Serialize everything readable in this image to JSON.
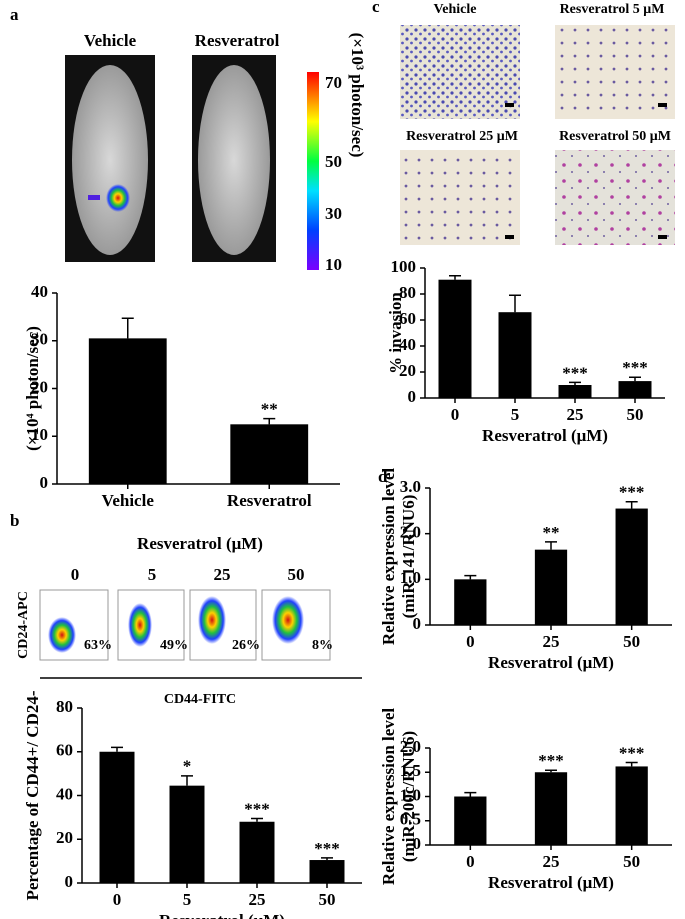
{
  "figure": {
    "panel_letters": [
      "a",
      "b",
      "c",
      "d"
    ],
    "a": {
      "image_labels": [
        "Vehicle",
        "Resveratrol"
      ],
      "colorbar_label": "(×10³ photon/sec)",
      "colorbar_ticks": [
        "70",
        "50",
        "30",
        "10"
      ]
    },
    "b": {
      "header": "Resveratrol (μM)",
      "conditions": [
        "0",
        "5",
        "25",
        "50"
      ],
      "percentages": [
        "63%",
        "49%",
        "26%",
        "8%"
      ],
      "y_axis": "CD24-APC",
      "x_axis": "CD44-FITC"
    },
    "c": {
      "image_labels": [
        "Vehicle",
        "Resveratrol 5 μM",
        "Resveratrol 25 μM",
        "Resveratrol 50 μM"
      ]
    }
  },
  "chart_data": [
    {
      "type": "bar",
      "ylabel": [
        "(×10⁴ photon/sec)"
      ],
      "categories": [
        "Vehicle",
        "Resveratrol"
      ],
      "values": [
        30.5,
        12.5
      ],
      "errors": [
        4.2,
        1.2
      ],
      "annotations": [
        null,
        "**"
      ],
      "color": "#000000",
      "ylim": [
        0,
        40
      ],
      "yticks": [
        0,
        10,
        20,
        30,
        40
      ]
    },
    {
      "type": "bar",
      "ylabel": [
        "Percentage of CD44+/ CD24-"
      ],
      "xlabel": "Resveratrol (μM)",
      "categories": [
        "0",
        "5",
        "25",
        "50"
      ],
      "values": [
        60,
        44.5,
        28,
        10.5
      ],
      "errors": [
        2,
        4.5,
        1.5,
        1
      ],
      "annotations": [
        null,
        "*",
        "***",
        "***"
      ],
      "color": "#000000",
      "ylim": [
        0,
        80
      ],
      "yticks": [
        0,
        20,
        40,
        60,
        80
      ]
    },
    {
      "type": "bar",
      "ylabel": [
        "% invasion"
      ],
      "xlabel": "Resveratrol (μM)",
      "categories": [
        "0",
        "5",
        "25",
        "50"
      ],
      "values": [
        91,
        66,
        10,
        13
      ],
      "errors": [
        3,
        13,
        2,
        3
      ],
      "annotations": [
        null,
        null,
        "***",
        "***"
      ],
      "color": "#000000",
      "ylim": [
        0,
        100
      ],
      "yticks": [
        0,
        20,
        40,
        60,
        80,
        100
      ]
    },
    {
      "type": "bar",
      "ylabel": [
        "Relative expression level",
        "(miR-141/RNU6)"
      ],
      "xlabel": "Resveratrol (μM)",
      "categories": [
        "0",
        "25",
        "50"
      ],
      "values": [
        1.0,
        1.65,
        2.55
      ],
      "errors": [
        0.08,
        0.17,
        0.15
      ],
      "annotations": [
        null,
        "**",
        "***"
      ],
      "color": "#000000",
      "ylim": [
        0,
        3
      ],
      "yticks": [
        0,
        {
          "value": 1,
          "label": "1.0"
        },
        {
          "value": 2,
          "label": "2.0"
        },
        {
          "value": 3,
          "label": "3.0"
        }
      ]
    },
    {
      "type": "bar",
      "ylabel": [
        "Relative expression level",
        "(miR-200c/RNU6)"
      ],
      "xlabel": "Resveratrol (μM)",
      "categories": [
        "0",
        "25",
        "50"
      ],
      "values": [
        1.0,
        1.5,
        1.62
      ],
      "errors": [
        0.08,
        0.04,
        0.08
      ],
      "annotations": [
        null,
        "***",
        "***"
      ],
      "color": "#000000",
      "ylim": [
        0,
        2
      ],
      "yticks": [
        0,
        0.5,
        {
          "value": 1,
          "label": "1.0"
        },
        {
          "value": 1.5,
          "label": "1.5"
        },
        {
          "value": 2,
          "label": "2.0"
        }
      ]
    }
  ]
}
